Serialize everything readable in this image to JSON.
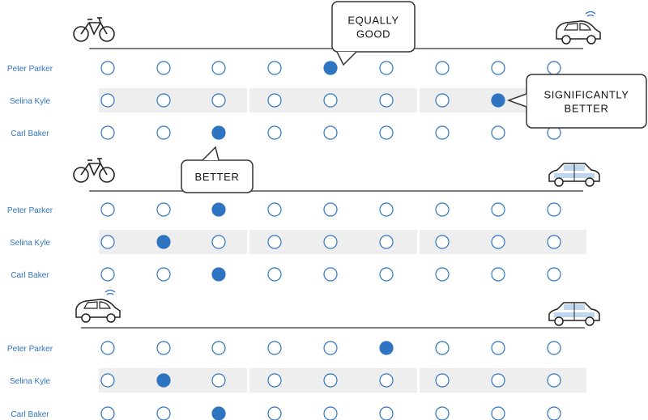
{
  "colors": {
    "accent": "#2e74c0",
    "circle_stroke": "#2e74c0",
    "row_band": "#eeeeee",
    "line": "#333333",
    "bubble_stroke": "#333333",
    "label_text": "#2e74c0"
  },
  "participants": [
    "Peter Parker",
    "Selina Kyle",
    "Carl Baker"
  ],
  "scale_points": 9,
  "comparisons": [
    {
      "left_icon": "bicycle-icon",
      "right_icon": "self-driving-car-icon",
      "callouts": [
        {
          "lines": [
            "EQUALLY",
            "GOOD"
          ]
        },
        {
          "lines": [
            "SIGNIFICANTLY",
            "BETTER"
          ]
        }
      ],
      "selections": {
        "Peter Parker": 5,
        "Selina Kyle": 8,
        "Carl Baker": 3
      }
    },
    {
      "left_icon": "bicycle-icon",
      "right_icon": "taxi-icon",
      "callouts": [
        {
          "lines": [
            "BETTER"
          ]
        }
      ],
      "selections": {
        "Peter Parker": 3,
        "Selina Kyle": 2,
        "Carl Baker": 3
      }
    },
    {
      "left_icon": "self-driving-car-icon",
      "right_icon": "taxi-icon",
      "callouts": [],
      "selections": {
        "Peter Parker": 6,
        "Selina Kyle": 2,
        "Carl Baker": 3
      }
    }
  ]
}
